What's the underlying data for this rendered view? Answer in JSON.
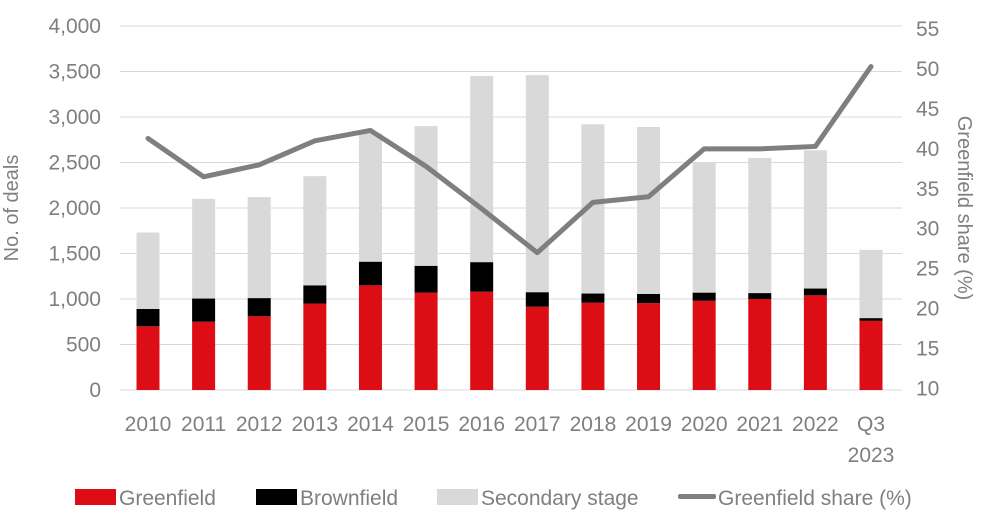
{
  "chart_data": {
    "type": "bar",
    "subtype": "stacked-bar-with-line",
    "title": "",
    "categories": [
      "2010",
      "2011",
      "2012",
      "2013",
      "2014",
      "2015",
      "2016",
      "2017",
      "2018",
      "2019",
      "2020",
      "2021",
      "2022",
      "Q3 2023"
    ],
    "series": [
      {
        "name": "Greenfield",
        "type": "bar",
        "color": "#dc0d15",
        "values": [
          700,
          750,
          810,
          950,
          1150,
          1070,
          1080,
          915,
          960,
          955,
          980,
          1000,
          1040,
          760
        ]
      },
      {
        "name": "Brownfield",
        "type": "bar",
        "color": "#000000",
        "values": [
          190,
          255,
          200,
          200,
          260,
          295,
          325,
          160,
          100,
          100,
          90,
          65,
          75,
          30
        ]
      },
      {
        "name": "Secondary stage",
        "type": "bar",
        "color": "#d9d9d9",
        "values": [
          840,
          1095,
          1110,
          1200,
          1410,
          1535,
          2045,
          2385,
          1860,
          1835,
          1430,
          1485,
          1520,
          750
        ]
      },
      {
        "name": "Greenfield share (%)",
        "type": "line",
        "axis": "right",
        "color": "#7f7f7f",
        "values": [
          41.3,
          36.5,
          38.0,
          41.0,
          42.3,
          37.8,
          32.5,
          27.0,
          33.3,
          34.0,
          40.0,
          40.0,
          40.3,
          50.3
        ]
      }
    ],
    "left_axis": {
      "label": "No. of deals",
      "min": 0,
      "max": 4000,
      "tick_step": 500,
      "ticks": [
        "4,000",
        "3,500",
        "3,000",
        "2,500",
        "2,000",
        "1,500",
        "1,000",
        "500",
        "0"
      ]
    },
    "right_axis": {
      "label": "Greenfield share (%)",
      "min": 10,
      "max": 55,
      "tick_step": 5,
      "ticks": [
        "55",
        "50",
        "45",
        "40",
        "35",
        "30",
        "25",
        "20",
        "15",
        "10"
      ]
    },
    "grid": true,
    "gridline_color": "#d9d9d9",
    "legend_position": "bottom",
    "background_color": "#ffffff",
    "text_color": "#7f7f7f"
  }
}
